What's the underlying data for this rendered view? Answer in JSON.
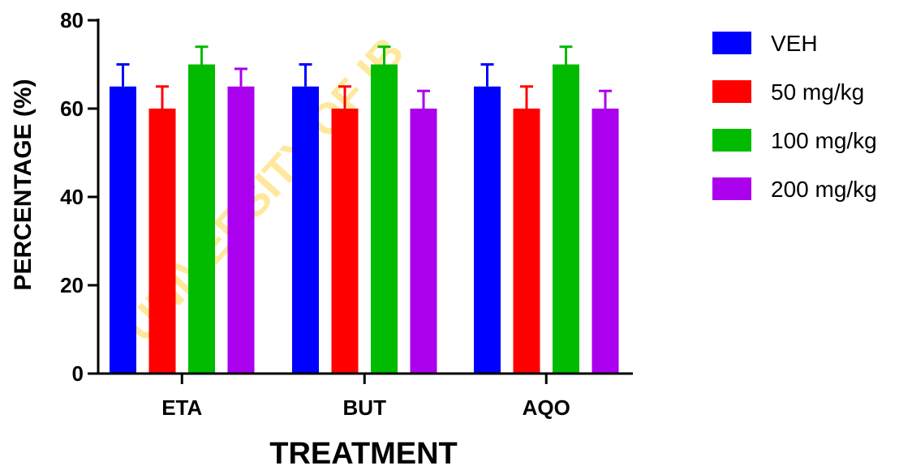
{
  "watermark": "UNIVERSITY OF IB",
  "chart_data": {
    "type": "bar",
    "title": "",
    "xlabel": "TREATMENT",
    "ylabel": "PERCENTAGE (%)",
    "ylim": [
      0,
      80
    ],
    "yticks": [
      0,
      20,
      40,
      60,
      80
    ],
    "categories": [
      "ETA",
      "BUT",
      "AQO"
    ],
    "series": [
      {
        "name": "VEH",
        "color": "#0000ff",
        "values": [
          65,
          65,
          65
        ],
        "errors": [
          5,
          5,
          5
        ]
      },
      {
        "name": "50 mg/kg",
        "color": "#ff0000",
        "values": [
          60,
          60,
          60
        ],
        "errors": [
          5,
          5,
          5
        ]
      },
      {
        "name": "100 mg/kg",
        "color": "#00bb00",
        "values": [
          70,
          70,
          70
        ],
        "errors": [
          4,
          4,
          4
        ]
      },
      {
        "name": "200 mg/kg",
        "color": "#aa00ee",
        "values": [
          65,
          60,
          60
        ],
        "errors": [
          4,
          4,
          4
        ]
      }
    ],
    "legend": "right",
    "grid": false
  }
}
